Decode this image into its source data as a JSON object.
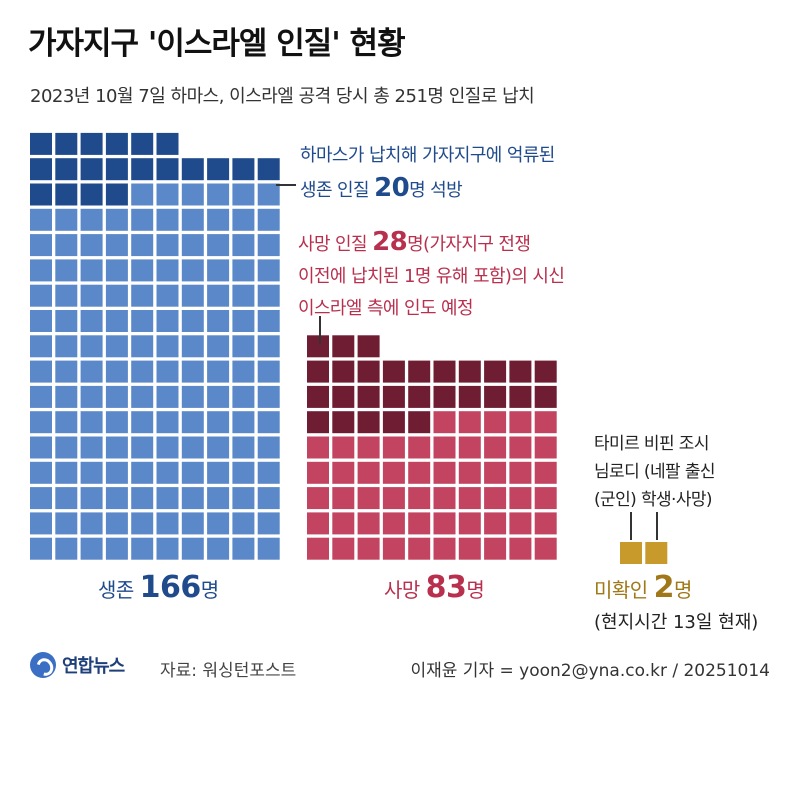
{
  "title": "가자지구 '이스라엘 인질' 현황",
  "subtitle": "2023년 10월 7일 하마스, 이스라엘 공격 당시 총 251명 인질로 납치",
  "annotations": {
    "freed_line1": "하마스가 납치해 가자지구에 억류된",
    "freed_prefix": "생존 인질 ",
    "freed_count": "20",
    "freed_suffix": "명 석방",
    "dead_prefix": "사망 인질 ",
    "dead_count": "28",
    "dead_line1_suffix": "명(가자지구 전쟁",
    "dead_line2": "이전에 납치된 1명 유해 포함)의 시신",
    "dead_line3": "이스라엘 측에 인도 예정",
    "missing_line1": "타미르 비핀 조시",
    "missing_line2": "님로디 (네팔 출신",
    "missing_line3": "(군인)  학생·사망)"
  },
  "labels": {
    "alive_prefix": "생존 ",
    "alive_count": "166",
    "alive_unit": "명",
    "dead_prefix": "사망 ",
    "dead_count": "83",
    "dead_unit": "명",
    "missing_prefix": "미확인 ",
    "missing_count": "2",
    "missing_unit": "명",
    "as_of": "(현지시간 13일 현재)"
  },
  "footer": {
    "logo": "연합뉴스",
    "source": "자료: 워싱턴포스트",
    "credit": "이재윤 기자 = yoon2@yna.co.kr / 20251014"
  },
  "colors": {
    "alive": "#5b88c8",
    "alive_highlight": "#1f4a8c",
    "dead": "#c24460",
    "dead_highlight": "#6e1d33",
    "missing": "#c79a2b"
  },
  "chart_data": {
    "type": "waffle",
    "total": 251,
    "series": [
      {
        "name": "생존",
        "value": 166,
        "highlight_name": "생존 인질 석방",
        "highlight_value": 20
      },
      {
        "name": "사망",
        "value": 83,
        "highlight_name": "사망 인질 시신 인도 예정",
        "highlight_value": 28
      },
      {
        "name": "미확인",
        "value": 2
      }
    ]
  }
}
